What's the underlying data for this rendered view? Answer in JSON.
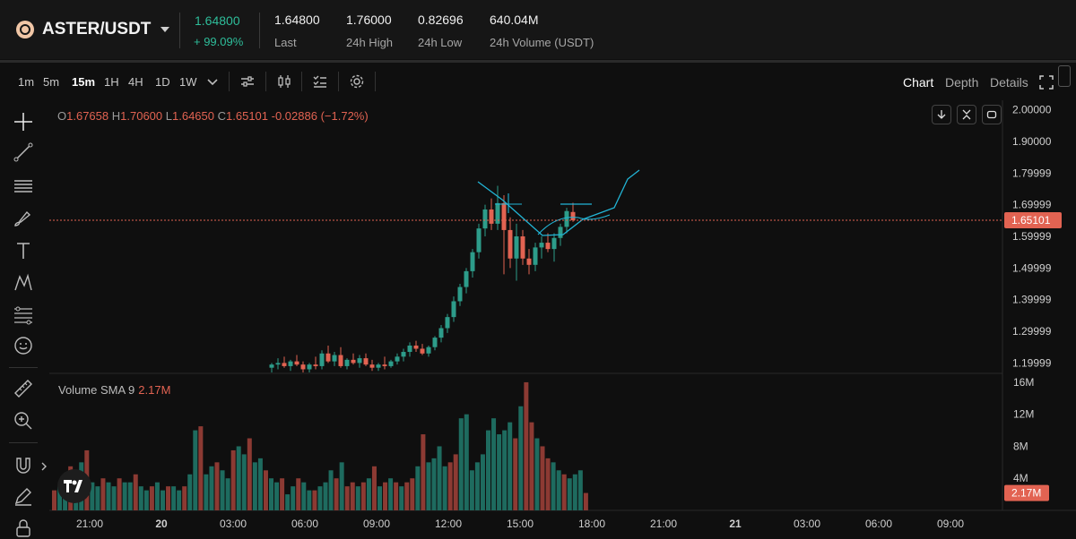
{
  "header": {
    "pair": "ASTER/USDT",
    "last_price": "1.64800",
    "change_pct": "+ 99.09%",
    "stats": [
      {
        "value": "1.64800",
        "label": "Last"
      },
      {
        "value": "1.76000",
        "label": "24h High"
      },
      {
        "value": "0.82696",
        "label": "24h Low"
      },
      {
        "value": "640.04M",
        "label": "24h Volume (USDT)"
      }
    ]
  },
  "toolbar": {
    "timeframes": [
      "1m",
      "5m",
      "15m",
      "1H",
      "4H",
      "1D",
      "1W"
    ],
    "active_timeframe": "15m",
    "views": [
      "Chart",
      "Depth",
      "Details"
    ],
    "active_view": "Chart"
  },
  "ohlc": {
    "o_key": "O",
    "o": "1.67658",
    "h_key": "H",
    "h": "1.70600",
    "l_key": "L",
    "l": "1.64650",
    "c_key": "C",
    "c": "1.65101",
    "change": "-0.02886 (−1.72%)"
  },
  "volume": {
    "label": "Volume SMA 9",
    "value": "2.17M"
  },
  "colors": {
    "up": "#2d9c8a",
    "down": "#e26352",
    "drawing": "#22b5d6",
    "background": "#0f0f0f"
  },
  "chart_data": {
    "type": "candlestick",
    "price_axis": [
      "2.00000",
      "1.90000",
      "1.79999",
      "1.69999",
      "1.59999",
      "1.49999",
      "1.39999",
      "1.29999",
      "1.19999"
    ],
    "current_price_tag": "1.65101",
    "volume_axis": [
      "16M",
      "12M",
      "8M",
      "4M"
    ],
    "volume_tag": "2.17M",
    "time_axis": [
      "21:00",
      "20",
      "03:00",
      "06:00",
      "09:00",
      "12:00",
      "15:00",
      "18:00",
      "21:00",
      "21",
      "03:00",
      "06:00",
      "09:00"
    ],
    "ylim": [
      1.17,
      2.03
    ],
    "volume_ylim": [
      0,
      17
    ],
    "candles": [
      {
        "o": 1.185,
        "h": 1.2,
        "l": 1.17,
        "c": 1.195
      },
      {
        "o": 1.195,
        "h": 1.215,
        "l": 1.18,
        "c": 1.2
      },
      {
        "o": 1.2,
        "h": 1.22,
        "l": 1.185,
        "c": 1.19
      },
      {
        "o": 1.19,
        "h": 1.21,
        "l": 1.175,
        "c": 1.205
      },
      {
        "o": 1.205,
        "h": 1.225,
        "l": 1.19,
        "c": 1.195
      },
      {
        "o": 1.195,
        "h": 1.205,
        "l": 1.17,
        "c": 1.18
      },
      {
        "o": 1.18,
        "h": 1.2,
        "l": 1.17,
        "c": 1.195
      },
      {
        "o": 1.195,
        "h": 1.22,
        "l": 1.18,
        "c": 1.19
      },
      {
        "o": 1.19,
        "h": 1.24,
        "l": 1.18,
        "c": 1.23
      },
      {
        "o": 1.23,
        "h": 1.255,
        "l": 1.2,
        "c": 1.205
      },
      {
        "o": 1.205,
        "h": 1.235,
        "l": 1.19,
        "c": 1.225
      },
      {
        "o": 1.225,
        "h": 1.25,
        "l": 1.185,
        "c": 1.19
      },
      {
        "o": 1.19,
        "h": 1.215,
        "l": 1.18,
        "c": 1.21
      },
      {
        "o": 1.21,
        "h": 1.23,
        "l": 1.195,
        "c": 1.2
      },
      {
        "o": 1.2,
        "h": 1.225,
        "l": 1.185,
        "c": 1.215
      },
      {
        "o": 1.215,
        "h": 1.23,
        "l": 1.19,
        "c": 1.195
      },
      {
        "o": 1.195,
        "h": 1.21,
        "l": 1.175,
        "c": 1.185
      },
      {
        "o": 1.185,
        "h": 1.2,
        "l": 1.175,
        "c": 1.195
      },
      {
        "o": 1.195,
        "h": 1.22,
        "l": 1.18,
        "c": 1.19
      },
      {
        "o": 1.19,
        "h": 1.21,
        "l": 1.185,
        "c": 1.205
      },
      {
        "o": 1.205,
        "h": 1.23,
        "l": 1.195,
        "c": 1.22
      },
      {
        "o": 1.22,
        "h": 1.245,
        "l": 1.205,
        "c": 1.235
      },
      {
        "o": 1.235,
        "h": 1.265,
        "l": 1.22,
        "c": 1.255
      },
      {
        "o": 1.255,
        "h": 1.27,
        "l": 1.235,
        "c": 1.245
      },
      {
        "o": 1.245,
        "h": 1.26,
        "l": 1.225,
        "c": 1.23
      },
      {
        "o": 1.23,
        "h": 1.255,
        "l": 1.22,
        "c": 1.25
      },
      {
        "o": 1.25,
        "h": 1.285,
        "l": 1.24,
        "c": 1.28
      },
      {
        "o": 1.28,
        "h": 1.32,
        "l": 1.265,
        "c": 1.31
      },
      {
        "o": 1.31,
        "h": 1.355,
        "l": 1.295,
        "c": 1.345
      },
      {
        "o": 1.345,
        "h": 1.41,
        "l": 1.33,
        "c": 1.395
      },
      {
        "o": 1.395,
        "h": 1.45,
        "l": 1.38,
        "c": 1.44
      },
      {
        "o": 1.44,
        "h": 1.5,
        "l": 1.42,
        "c": 1.49
      },
      {
        "o": 1.49,
        "h": 1.56,
        "l": 1.47,
        "c": 1.55
      },
      {
        "o": 1.55,
        "h": 1.64,
        "l": 1.53,
        "c": 1.625
      },
      {
        "o": 1.625,
        "h": 1.7,
        "l": 1.6,
        "c": 1.685
      },
      {
        "o": 1.685,
        "h": 1.72,
        "l": 1.62,
        "c": 1.64
      },
      {
        "o": 1.64,
        "h": 1.76,
        "l": 1.62,
        "c": 1.705
      },
      {
        "o": 1.705,
        "h": 1.73,
        "l": 1.48,
        "c": 1.62
      },
      {
        "o": 1.62,
        "h": 1.66,
        "l": 1.5,
        "c": 1.53
      },
      {
        "o": 1.53,
        "h": 1.64,
        "l": 1.46,
        "c": 1.6
      },
      {
        "o": 1.6,
        "h": 1.62,
        "l": 1.51,
        "c": 1.53
      },
      {
        "o": 1.53,
        "h": 1.56,
        "l": 1.48,
        "c": 1.51
      },
      {
        "o": 1.51,
        "h": 1.58,
        "l": 1.49,
        "c": 1.565
      },
      {
        "o": 1.565,
        "h": 1.6,
        "l": 1.53,
        "c": 1.58
      },
      {
        "o": 1.58,
        "h": 1.61,
        "l": 1.55,
        "c": 1.56
      },
      {
        "o": 1.56,
        "h": 1.61,
        "l": 1.52,
        "c": 1.595
      },
      {
        "o": 1.595,
        "h": 1.64,
        "l": 1.57,
        "c": 1.63
      },
      {
        "o": 1.63,
        "h": 1.69,
        "l": 1.61,
        "c": 1.68
      },
      {
        "o": 1.677,
        "h": 1.706,
        "l": 1.646,
        "c": 1.651
      }
    ],
    "volume": [
      3.5,
      5.0,
      4.0,
      6.0,
      3.0,
      3.5,
      3.0,
      3.5,
      4.0,
      5.5,
      3.0,
      3.5,
      4.0,
      3.5,
      3.0,
      3.5,
      4.0,
      5.5,
      9.5,
      6.0,
      6.5,
      8.0,
      5.5,
      6.0,
      7.0,
      11.5,
      12.0,
      5.0,
      6.0,
      7.0,
      10.0,
      11.5,
      9.5,
      10.0,
      11.0,
      9.0,
      13.0,
      16.0,
      11.0,
      9.0,
      8.0,
      6.5,
      6.0,
      5.0,
      4.5,
      4.0,
      4.5,
      5.0,
      2.17
    ],
    "drawing": "trend annotation"
  }
}
